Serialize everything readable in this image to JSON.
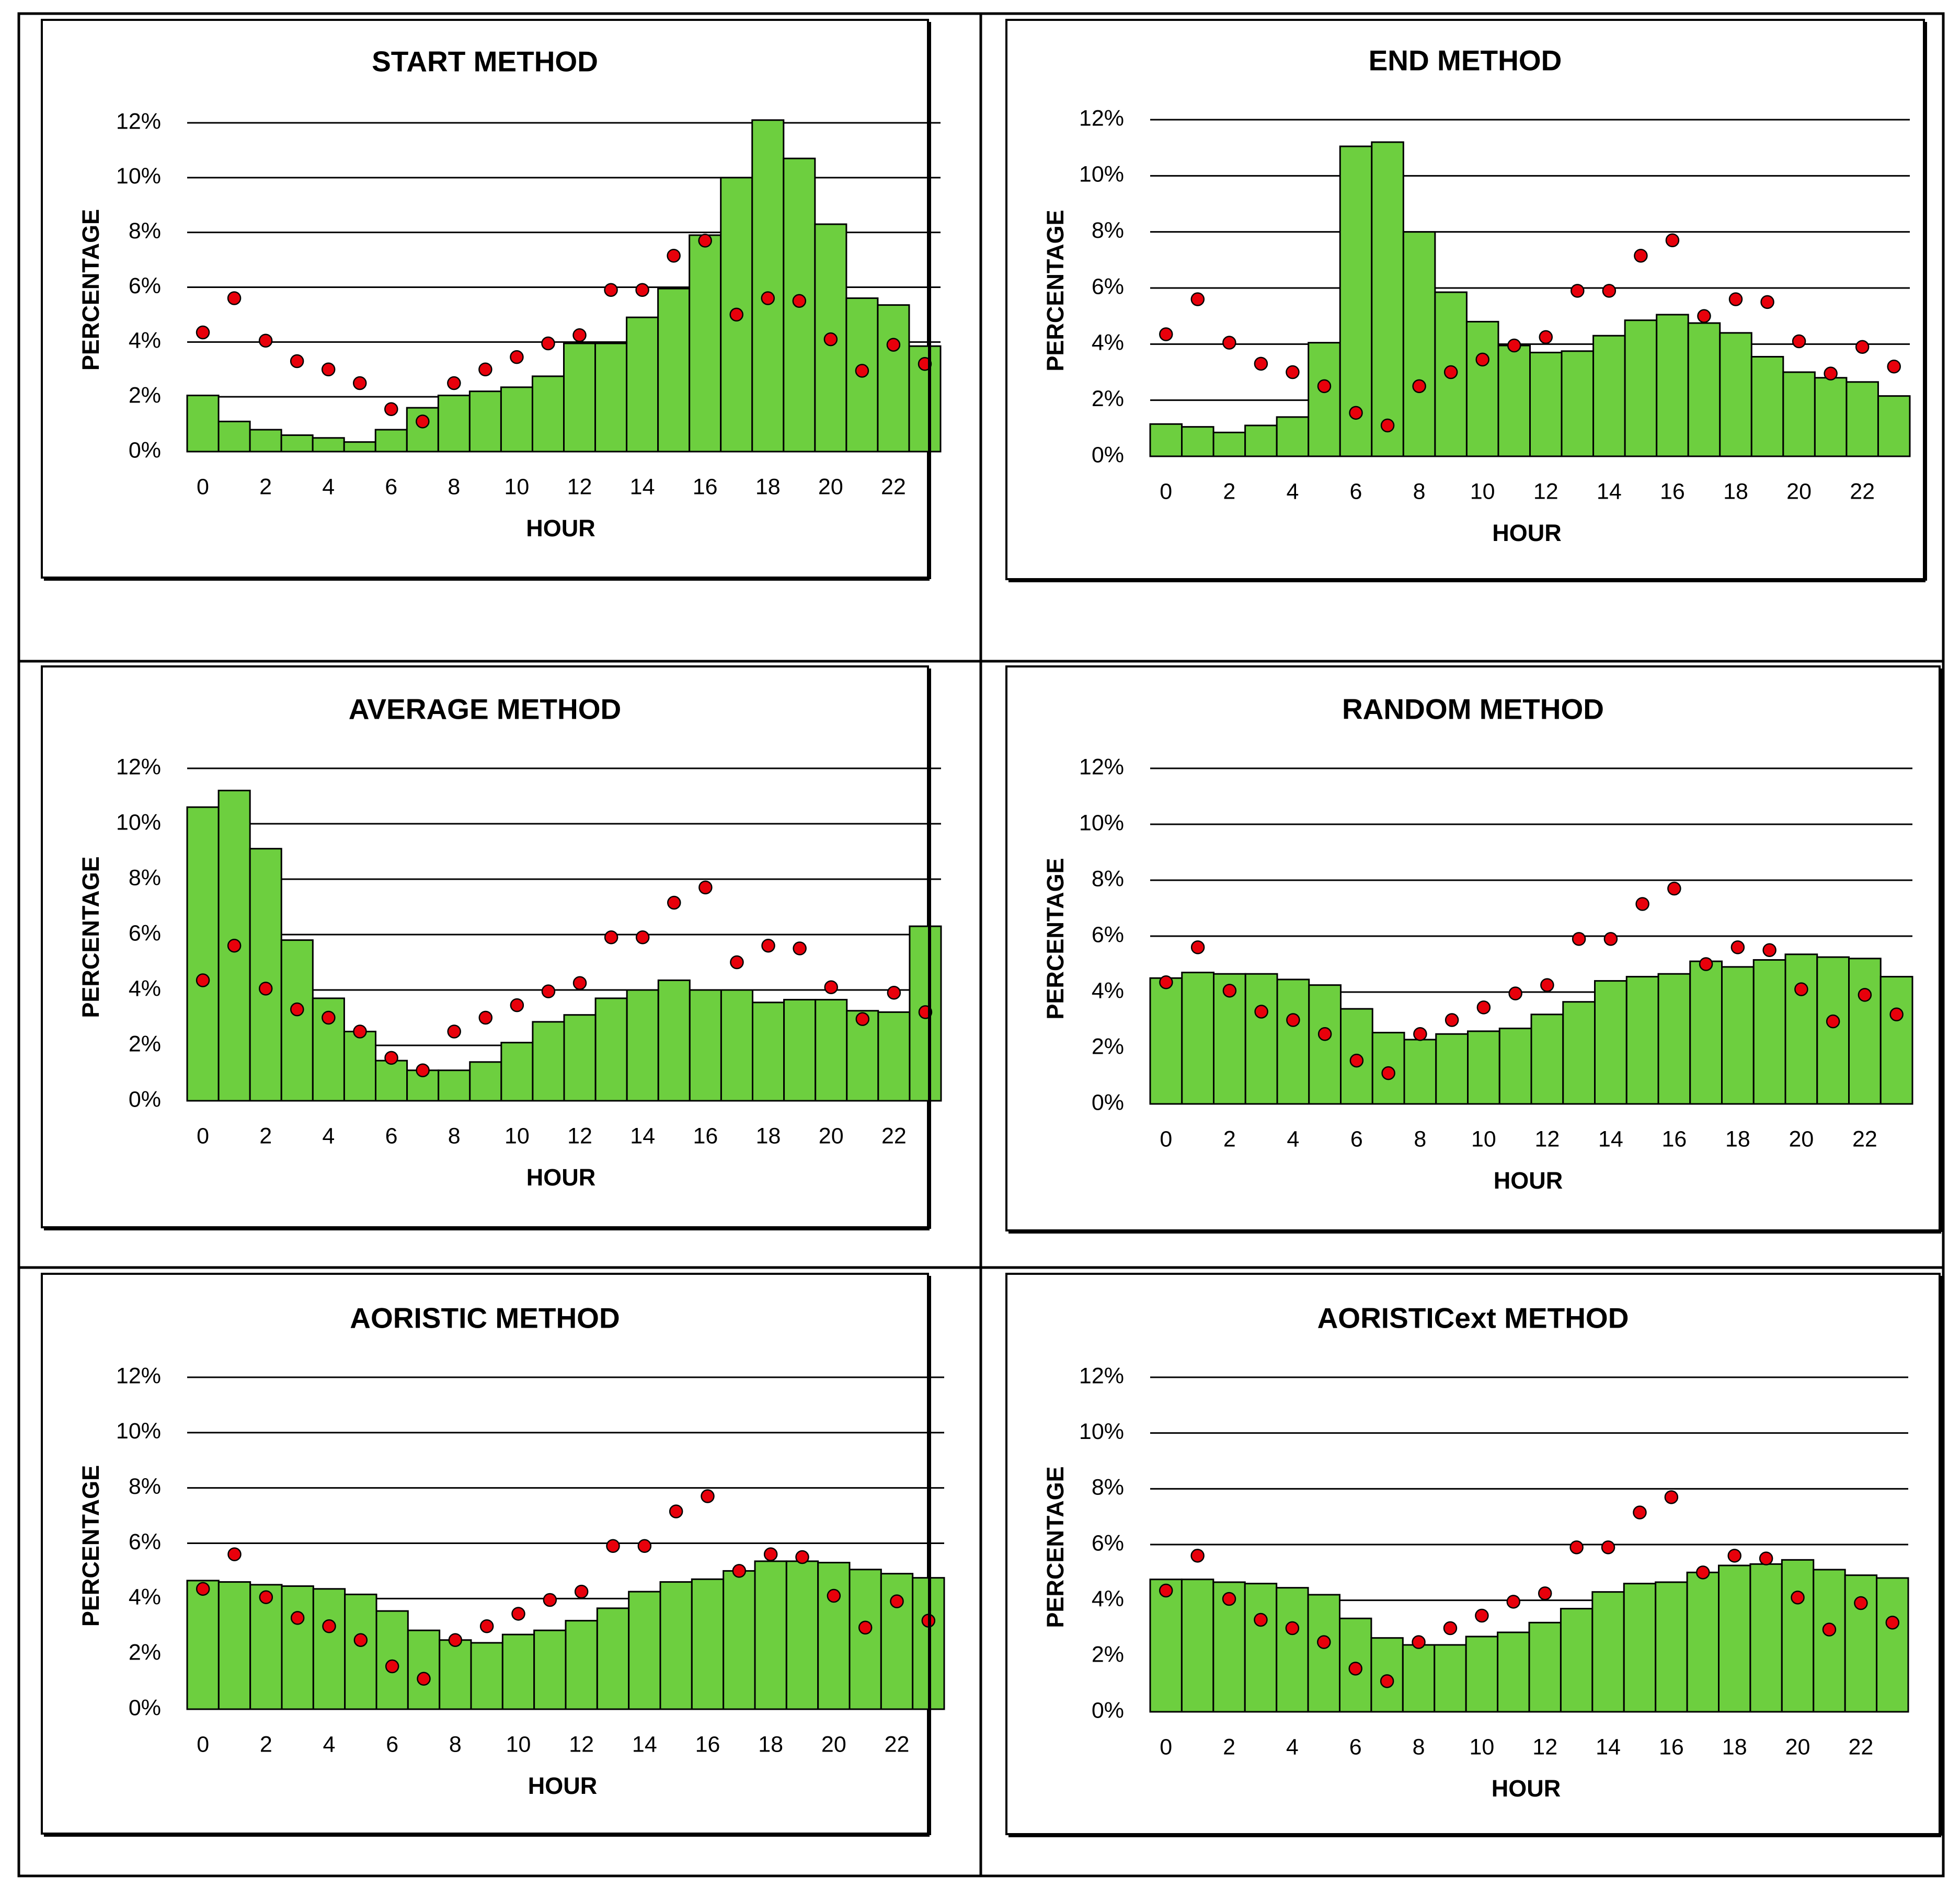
{
  "colors": {
    "bar_fill": "#6dcf3f",
    "bar_stroke": "#000000",
    "point_fill": "#e8000b",
    "point_stroke": "#000000",
    "gridline": "#000000",
    "frame": "#000000"
  },
  "chart_data": [
    {
      "type": "bar",
      "title": "START METHOD",
      "xlabel": "HOUR",
      "ylabel": "PERCENTAGE",
      "x": [
        0,
        1,
        2,
        3,
        4,
        5,
        6,
        7,
        8,
        9,
        10,
        11,
        12,
        13,
        14,
        15,
        16,
        17,
        18,
        19,
        20,
        21,
        22,
        23
      ],
      "xtick_labels": [
        "0",
        "2",
        "4",
        "6",
        "8",
        "10",
        "12",
        "14",
        "16",
        "18",
        "20",
        "22"
      ],
      "ytick_labels": [
        "0%",
        "2%",
        "4%",
        "6%",
        "8%",
        "10%",
        "12%"
      ],
      "ylim": [
        0,
        12
      ],
      "series": [
        {
          "name": "method",
          "kind": "bar",
          "values": [
            2.05,
            1.1,
            0.8,
            0.6,
            0.5,
            0.35,
            0.8,
            1.6,
            2.05,
            2.2,
            2.35,
            2.75,
            3.95,
            3.95,
            4.9,
            5.95,
            7.9,
            10.0,
            12.1,
            10.7,
            8.3,
            5.6,
            5.35,
            3.85
          ]
        },
        {
          "name": "reference",
          "kind": "scatter",
          "values": [
            4.35,
            5.6,
            4.05,
            3.3,
            3.0,
            2.5,
            1.55,
            1.1,
            2.5,
            3.0,
            3.45,
            3.95,
            4.25,
            5.9,
            5.9,
            7.15,
            7.7,
            5.0,
            5.6,
            5.5,
            4.1,
            2.95,
            3.9,
            3.2
          ]
        }
      ]
    },
    {
      "type": "bar",
      "title": "END METHOD",
      "xlabel": "HOUR",
      "ylabel": "PERCENTAGE",
      "x": [
        0,
        1,
        2,
        3,
        4,
        5,
        6,
        7,
        8,
        9,
        10,
        11,
        12,
        13,
        14,
        15,
        16,
        17,
        18,
        19,
        20,
        21,
        22,
        23
      ],
      "xtick_labels": [
        "0",
        "2",
        "4",
        "6",
        "8",
        "10",
        "12",
        "14",
        "16",
        "18",
        "20",
        "22"
      ],
      "ytick_labels": [
        "0%",
        "2%",
        "4%",
        "6%",
        "8%",
        "10%",
        "12%"
      ],
      "ylim": [
        0,
        12
      ],
      "series": [
        {
          "name": "method",
          "kind": "bar",
          "values": [
            1.15,
            1.05,
            0.85,
            1.1,
            1.4,
            4.05,
            11.05,
            11.2,
            8.0,
            5.85,
            4.8,
            3.95,
            3.7,
            3.75,
            4.3,
            4.85,
            5.05,
            4.75,
            4.4,
            3.55,
            3.0,
            2.8,
            2.65,
            2.15
          ]
        },
        {
          "name": "reference",
          "kind": "scatter",
          "values": [
            4.35,
            5.6,
            4.05,
            3.3,
            3.0,
            2.5,
            1.55,
            1.1,
            2.5,
            3.0,
            3.45,
            3.95,
            4.25,
            5.9,
            5.9,
            7.15,
            7.7,
            5.0,
            5.6,
            5.5,
            4.1,
            2.95,
            3.9,
            3.2
          ]
        }
      ]
    },
    {
      "type": "bar",
      "title": "AVERAGE METHOD",
      "xlabel": "HOUR",
      "ylabel": "PERCENTAGE",
      "x": [
        0,
        1,
        2,
        3,
        4,
        5,
        6,
        7,
        8,
        9,
        10,
        11,
        12,
        13,
        14,
        15,
        16,
        17,
        18,
        19,
        20,
        21,
        22,
        23
      ],
      "xtick_labels": [
        "0",
        "2",
        "4",
        "6",
        "8",
        "10",
        "12",
        "14",
        "16",
        "18",
        "20",
        "22"
      ],
      "ytick_labels": [
        "0%",
        "2%",
        "4%",
        "6%",
        "8%",
        "10%",
        "12%"
      ],
      "ylim": [
        0,
        12
      ],
      "series": [
        {
          "name": "method",
          "kind": "bar",
          "values": [
            10.6,
            11.2,
            9.1,
            5.8,
            3.7,
            2.5,
            1.45,
            1.1,
            1.1,
            1.4,
            2.1,
            2.85,
            3.1,
            3.7,
            4.0,
            4.35,
            4.0,
            4.0,
            3.55,
            3.65,
            3.65,
            3.25,
            3.2,
            6.3
          ]
        },
        {
          "name": "reference",
          "kind": "scatter",
          "values": [
            4.35,
            5.6,
            4.05,
            3.3,
            3.0,
            2.5,
            1.55,
            1.1,
            2.5,
            3.0,
            3.45,
            3.95,
            4.25,
            5.9,
            5.9,
            7.15,
            7.7,
            5.0,
            5.6,
            5.5,
            4.1,
            2.95,
            3.9,
            3.2
          ]
        }
      ]
    },
    {
      "type": "bar",
      "title": "RANDOM METHOD",
      "xlabel": "HOUR",
      "ylabel": "PERCENTAGE",
      "x": [
        0,
        1,
        2,
        3,
        4,
        5,
        6,
        7,
        8,
        9,
        10,
        11,
        12,
        13,
        14,
        15,
        16,
        17,
        18,
        19,
        20,
        21,
        22,
        23
      ],
      "xtick_labels": [
        "0",
        "2",
        "4",
        "6",
        "8",
        "10",
        "12",
        "14",
        "16",
        "18",
        "20",
        "22"
      ],
      "ytick_labels": [
        "0%",
        "2%",
        "4%",
        "6%",
        "8%",
        "10%",
        "12%"
      ],
      "ylim": [
        0,
        12
      ],
      "series": [
        {
          "name": "method",
          "kind": "bar",
          "values": [
            4.5,
            4.7,
            4.65,
            4.65,
            4.45,
            4.25,
            3.4,
            2.55,
            2.3,
            2.5,
            2.6,
            2.7,
            3.2,
            3.65,
            4.4,
            4.55,
            4.65,
            5.1,
            4.9,
            5.15,
            5.35,
            5.25,
            5.2,
            4.55
          ]
        },
        {
          "name": "reference",
          "kind": "scatter",
          "values": [
            4.35,
            5.6,
            4.05,
            3.3,
            3.0,
            2.5,
            1.55,
            1.1,
            2.5,
            3.0,
            3.45,
            3.95,
            4.25,
            5.9,
            5.9,
            7.15,
            7.7,
            5.0,
            5.6,
            5.5,
            4.1,
            2.95,
            3.9,
            3.2
          ]
        }
      ]
    },
    {
      "type": "bar",
      "title": "AORISTIC METHOD",
      "xlabel": "HOUR",
      "ylabel": "PERCENTAGE",
      "x": [
        0,
        1,
        2,
        3,
        4,
        5,
        6,
        7,
        8,
        9,
        10,
        11,
        12,
        13,
        14,
        15,
        16,
        17,
        18,
        19,
        20,
        21,
        22,
        23
      ],
      "xtick_labels": [
        "0",
        "2",
        "4",
        "6",
        "8",
        "10",
        "12",
        "14",
        "16",
        "18",
        "20",
        "22"
      ],
      "ytick_labels": [
        "0%",
        "2%",
        "4%",
        "6%",
        "8%",
        "10%",
        "12%"
      ],
      "ylim": [
        0,
        12
      ],
      "series": [
        {
          "name": "method",
          "kind": "bar",
          "values": [
            4.65,
            4.6,
            4.5,
            4.45,
            4.35,
            4.15,
            3.55,
            2.85,
            2.5,
            2.4,
            2.7,
            2.85,
            3.2,
            3.65,
            4.25,
            4.6,
            4.7,
            5.0,
            5.35,
            5.35,
            5.3,
            5.05,
            4.9,
            4.75
          ]
        },
        {
          "name": "reference",
          "kind": "scatter",
          "values": [
            4.35,
            5.6,
            4.05,
            3.3,
            3.0,
            2.5,
            1.55,
            1.1,
            2.5,
            3.0,
            3.45,
            3.95,
            4.25,
            5.9,
            5.9,
            7.15,
            7.7,
            5.0,
            5.6,
            5.5,
            4.1,
            2.95,
            3.9,
            3.2
          ]
        }
      ]
    },
    {
      "type": "bar",
      "title": "AORISTICext METHOD",
      "xlabel": "HOUR",
      "ylabel": "PERCENTAGE",
      "x": [
        0,
        1,
        2,
        3,
        4,
        5,
        6,
        7,
        8,
        9,
        10,
        11,
        12,
        13,
        14,
        15,
        16,
        17,
        18,
        19,
        20,
        21,
        22,
        23
      ],
      "xtick_labels": [
        "0",
        "2",
        "4",
        "6",
        "8",
        "10",
        "12",
        "14",
        "16",
        "18",
        "20",
        "22"
      ],
      "ytick_labels": [
        "0%",
        "2%",
        "4%",
        "6%",
        "8%",
        "10%",
        "12%"
      ],
      "ylim": [
        0,
        12
      ],
      "series": [
        {
          "name": "method",
          "kind": "bar",
          "values": [
            4.75,
            4.75,
            4.65,
            4.6,
            4.45,
            4.2,
            3.35,
            2.65,
            2.4,
            2.4,
            2.7,
            2.85,
            3.2,
            3.7,
            4.3,
            4.6,
            4.65,
            5.0,
            5.25,
            5.3,
            5.45,
            5.1,
            4.9,
            4.8
          ]
        },
        {
          "name": "reference",
          "kind": "scatter",
          "values": [
            4.35,
            5.6,
            4.05,
            3.3,
            3.0,
            2.5,
            1.55,
            1.1,
            2.5,
            3.0,
            3.45,
            3.95,
            4.25,
            5.9,
            5.9,
            7.15,
            7.7,
            5.0,
            5.6,
            5.5,
            4.1,
            2.95,
            3.9,
            3.2
          ]
        }
      ]
    }
  ]
}
